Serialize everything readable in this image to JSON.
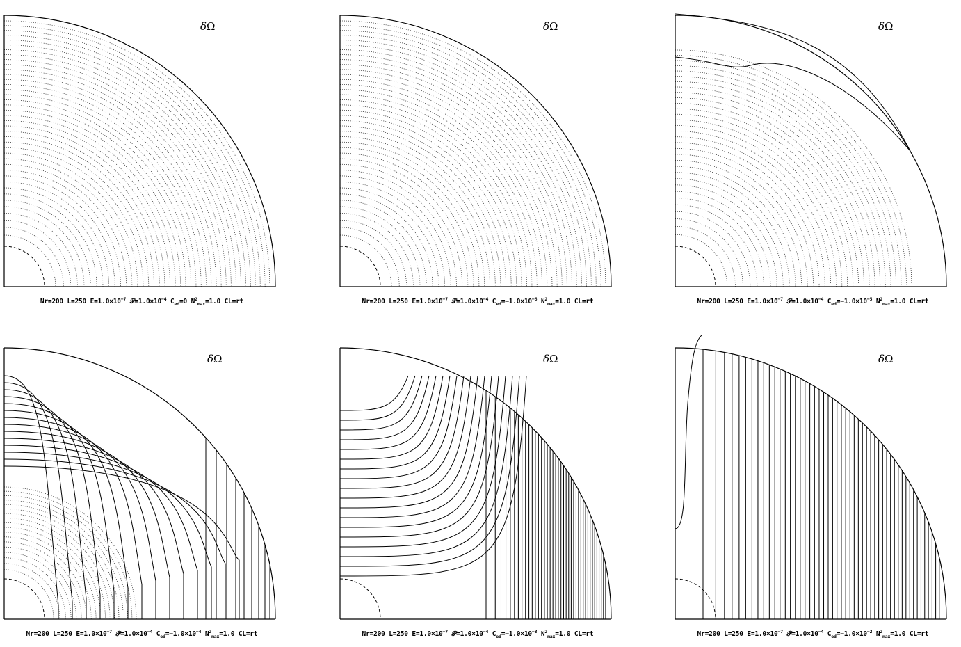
{
  "symbol": {
    "delta": "δ",
    "omega": "Ω"
  },
  "panels": [
    {
      "id": "p1",
      "params": {
        "nr": "Nr=200",
        "l": "L=250",
        "e": "E=1.0×10",
        "e_exp": "−7",
        "p": "=1.0×10",
        "p_exp": "−4",
        "c_pre": "C",
        "c_sub": "ed",
        "c_val": "=0",
        "n_pre": "N",
        "n_sup": "2",
        "n_sub": "max",
        "n_val": "=1.0",
        "cl": "CL=rt"
      },
      "style": "dotted-circles"
    },
    {
      "id": "p2",
      "params": {
        "nr": "Nr=200",
        "l": "L=250",
        "e": "E=1.0×10",
        "e_exp": "−7",
        "p": "=1.0×10",
        "p_exp": "−4",
        "c_pre": "C",
        "c_sub": "ed",
        "c_val": "=−1.0×10",
        "c_exp": "−6",
        "n_pre": "N",
        "n_sup": "2",
        "n_sub": "max",
        "n_val": "=1.0",
        "cl": "CL=rt"
      },
      "style": "dotted-circles"
    },
    {
      "id": "p3",
      "params": {
        "nr": "Nr=200",
        "l": "L=250",
        "e": "E=1.0×10",
        "e_exp": "−7",
        "p": "=1.0×10",
        "p_exp": "−4",
        "c_pre": "C",
        "c_sub": "ed",
        "c_val": "=−1.0×10",
        "c_exp": "−5",
        "n_pre": "N",
        "n_sup": "2",
        "n_sub": "max",
        "n_val": "=1.0",
        "cl": "CL=rt"
      },
      "style": "mixed-top"
    },
    {
      "id": "p4",
      "params": {
        "nr": "Nr=200",
        "l": "L=250",
        "e": "E=1.0×10",
        "e_exp": "−7",
        "p": "=1.0×10",
        "p_exp": "−4",
        "c_pre": "C",
        "c_sub": "ed",
        "c_val": "=−1.0×10",
        "c_exp": "−4",
        "n_pre": "N",
        "n_sup": "2",
        "n_sub": "max",
        "n_val": "=1.0",
        "cl": "CL=rt"
      },
      "style": "mixed-strong"
    },
    {
      "id": "p5",
      "params": {
        "nr": "Nr=200",
        "l": "L=250",
        "e": "E=1.0×10",
        "e_exp": "−7",
        "p": "=1.0×10",
        "p_exp": "−4",
        "c_pre": "C",
        "c_sub": "ed",
        "c_val": "=−1.0×10",
        "c_exp": "−3",
        "n_pre": "N",
        "n_sup": "2",
        "n_sub": "max",
        "n_val": "=1.0",
        "cl": "CL=rt"
      },
      "style": "solid-curved"
    },
    {
      "id": "p6",
      "params": {
        "nr": "Nr=200",
        "l": "L=250",
        "e": "E=1.0×10",
        "e_exp": "−7",
        "p": "=1.0×10",
        "p_exp": "−4",
        "c_pre": "C",
        "c_sub": "ed",
        "c_val": "=−1.0×10",
        "c_exp": "−2",
        "n_pre": "N",
        "n_sup": "2",
        "n_sub": "max",
        "n_val": "=1.0",
        "cl": "CL=rt"
      },
      "style": "solid-vertical"
    }
  ],
  "p_symbol": "𝒫"
}
